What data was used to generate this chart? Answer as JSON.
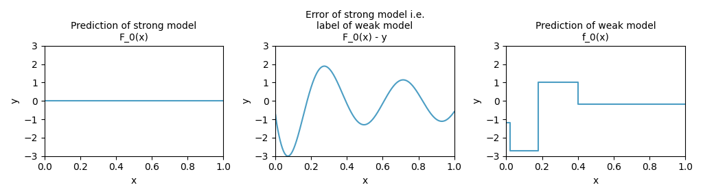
{
  "title1": "Prediction of strong model\nF_0(x)",
  "title2": "Error of strong model i.e.\nlabel of weak model\nF_0(x) - y",
  "title3": "Prediction of weak model\nf_0(x)",
  "xlabel": "x",
  "ylabel": "y",
  "xlim": [
    0.0,
    1.0
  ],
  "ylim": [
    -3,
    3
  ],
  "line_color": "#4c9ec4",
  "bg_color": "#ffffff",
  "xticks": [
    0.0,
    0.2,
    0.4,
    0.6,
    0.8,
    1.0
  ],
  "yticks": [
    -3,
    -2,
    -1,
    0,
    1,
    2,
    3
  ],
  "step_x": [
    0.0,
    0.02,
    0.02,
    0.18,
    0.18,
    0.4,
    0.4,
    1.0
  ],
  "step_y": [
    -1.2,
    -1.2,
    -2.7,
    -2.7,
    1.0,
    1.0,
    -0.18,
    -0.18
  ],
  "sin_omega": 8.8,
  "sin_phase": 3.05,
  "sin_amp_A": 2.0,
  "sin_amp_decay": 5.0,
  "sin_amp_base": 0.6
}
